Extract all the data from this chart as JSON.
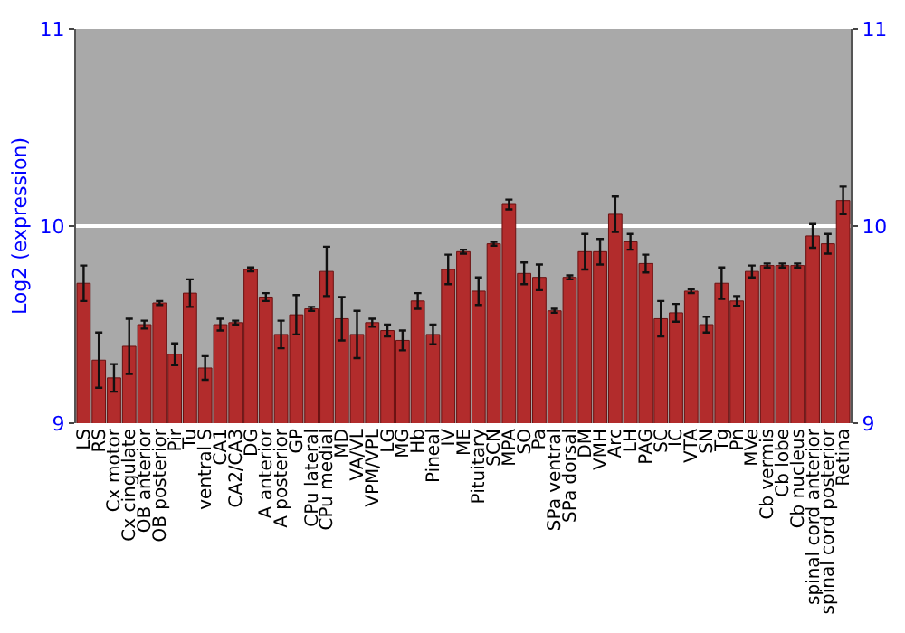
{
  "chart_data": {
    "type": "bar",
    "ylabel": "Log2 (expression)",
    "categories": [
      "LS",
      "RS",
      "Cx motor",
      "Cx cingulate",
      "OB anterior",
      "OB posterior",
      "Pir",
      "Tu",
      "ventral S",
      "CA1",
      "CA2/CA3",
      "DG",
      "A anterior",
      "A posterior",
      "GP",
      "CPu lateral",
      "CPu medial",
      "MD",
      "VA/VL",
      "VPM/VPL",
      "LG",
      "MG",
      "Hb",
      "Pineal",
      "IV",
      "ME",
      "Pituitary",
      "SCN",
      "MPA",
      "SO",
      "Pa",
      "SPa ventral",
      "SPa dorsal",
      "DM",
      "VMH",
      "Arc",
      "LH",
      "PAG",
      "SC",
      "IC",
      "VTA",
      "SN",
      "Tg",
      "Pn",
      "MVe",
      "Cb vermis",
      "Cb lobe",
      "Cb nucleus",
      "spinal cord anterior",
      "spinal cord posterior",
      "Retina"
    ],
    "values": [
      9.71,
      9.32,
      9.23,
      9.39,
      9.5,
      9.61,
      9.35,
      9.66,
      9.28,
      9.5,
      9.51,
      9.78,
      9.64,
      9.45,
      9.55,
      9.58,
      9.77,
      9.53,
      9.45,
      9.51,
      9.47,
      9.42,
      9.62,
      9.45,
      9.78,
      9.87,
      9.67,
      9.91,
      10.11,
      9.76,
      9.74,
      9.57,
      9.74,
      9.87,
      9.87,
      10.06,
      9.92,
      9.81,
      9.53,
      9.56,
      9.67,
      9.5,
      9.71,
      9.62,
      9.77,
      9.8,
      9.8,
      9.8,
      9.95,
      9.91,
      10.13
    ],
    "errors": [
      0.09,
      0.14,
      0.07,
      0.14,
      0.02,
      0.01,
      0.055,
      0.07,
      0.06,
      0.03,
      0.01,
      0.01,
      0.02,
      0.07,
      0.1,
      0.01,
      0.125,
      0.11,
      0.12,
      0.02,
      0.03,
      0.05,
      0.04,
      0.05,
      0.075,
      0.01,
      0.07,
      0.01,
      0.025,
      0.055,
      0.065,
      0.01,
      0.01,
      0.09,
      0.065,
      0.09,
      0.04,
      0.045,
      0.09,
      0.045,
      0.01,
      0.04,
      0.08,
      0.025,
      0.03,
      0.01,
      0.01,
      0.01,
      0.06,
      0.05,
      0.07
    ],
    "color": "#b22c2c",
    "ylim": [
      9,
      11
    ],
    "yticks": [
      9,
      10,
      11
    ],
    "y2lim": [
      9,
      11
    ],
    "y2ticks": [
      9,
      10,
      11
    ],
    "grid": "y"
  }
}
